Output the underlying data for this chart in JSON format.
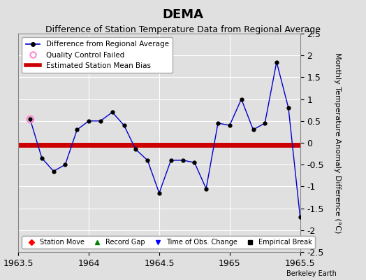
{
  "title": "DEMA",
  "subtitle": "Difference of Station Temperature Data from Regional Average",
  "ylabel": "Monthly Temperature Anomaly Difference (°C)",
  "background_color": "#e0e0e0",
  "plot_bg_color": "#e0e0e0",
  "xlim": [
    1963.5,
    1965.5
  ],
  "ylim": [
    -2.5,
    2.5
  ],
  "xticks": [
    1963.5,
    1964.0,
    1964.5,
    1965.0,
    1965.5
  ],
  "yticks": [
    -2.5,
    -2.0,
    -1.5,
    -1.0,
    -0.5,
    0.0,
    0.5,
    1.0,
    1.5,
    2.0,
    2.5
  ],
  "bias_value": -0.05,
  "x_data": [
    1963.583,
    1963.667,
    1963.75,
    1963.833,
    1963.917,
    1964.0,
    1964.083,
    1964.167,
    1964.25,
    1964.333,
    1964.417,
    1964.5,
    1964.583,
    1964.667,
    1964.75,
    1964.833,
    1964.917,
    1965.0,
    1965.083,
    1965.167,
    1965.25,
    1965.333,
    1965.417,
    1965.5
  ],
  "y_data": [
    0.55,
    -0.35,
    -0.65,
    -0.5,
    0.3,
    0.5,
    0.5,
    0.7,
    0.4,
    -0.15,
    -0.4,
    -1.15,
    -0.4,
    -0.4,
    -0.45,
    -1.05,
    0.45,
    0.4,
    1.0,
    0.3,
    0.45,
    1.85,
    0.8,
    -1.7
  ],
  "qc_failed_x": [
    1963.583
  ],
  "qc_failed_y": [
    0.55
  ],
  "line_color": "#0000cc",
  "marker_color": "#000000",
  "bias_color": "#cc0000",
  "qc_color": "#ff88cc",
  "watermark": "Berkeley Earth",
  "title_fontsize": 13,
  "subtitle_fontsize": 9,
  "tick_fontsize": 9,
  "ylabel_fontsize": 8
}
